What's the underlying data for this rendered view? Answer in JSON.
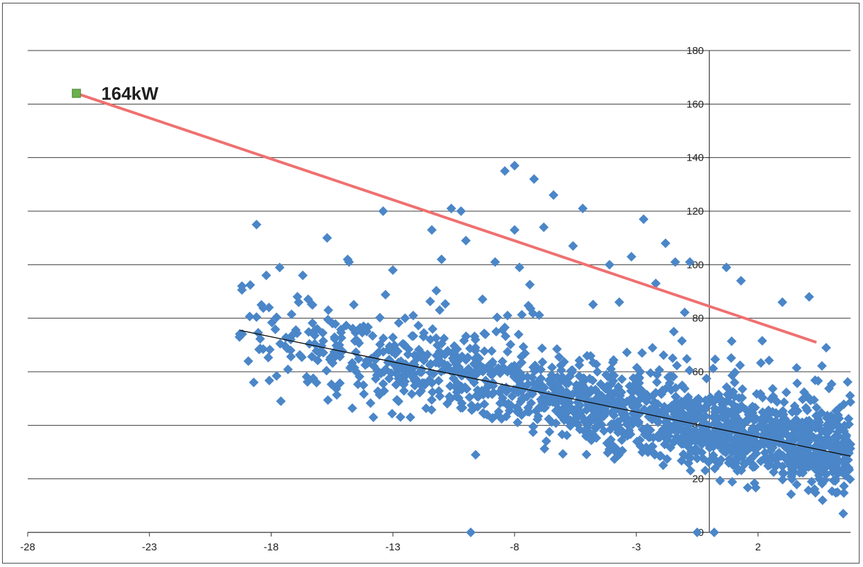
{
  "chart_data": {
    "type": "scatter",
    "title": "",
    "xlabel": "",
    "ylabel": "",
    "xlim": [
      -28,
      5.8
    ],
    "ylim": [
      0,
      180
    ],
    "x_ticks": [
      -28,
      -23,
      -18,
      -13,
      -8,
      -3,
      2
    ],
    "y_ticks": [
      0,
      20,
      40,
      60,
      80,
      100,
      120,
      140,
      160,
      180
    ],
    "grid": "horizontal",
    "legend": "none",
    "colors": {
      "points": "#4a86c8",
      "peak_line": "#f07070",
      "trend_line": "#111111",
      "peak_marker": "#6ab04c",
      "gridline": "#3a3a3a"
    },
    "scatter_summary": {
      "note": "Dense cloud of outdoor-temperature vs load readings; representative points",
      "sample_points": [
        [
          -19.3,
          73
        ],
        [
          -19.2,
          92
        ],
        [
          -18.6,
          115
        ],
        [
          -18.4,
          85
        ],
        [
          -18.2,
          96
        ],
        [
          -17.6,
          49
        ],
        [
          -17.2,
          68
        ],
        [
          -16.7,
          96
        ],
        [
          -16.3,
          85
        ],
        [
          -15.7,
          110
        ],
        [
          -15.2,
          70
        ],
        [
          -14.8,
          101
        ],
        [
          -14.5,
          60
        ],
        [
          -13.8,
          43
        ],
        [
          -13.4,
          120
        ],
        [
          -13.0,
          98
        ],
        [
          -12.5,
          80
        ],
        [
          -12.0,
          65
        ],
        [
          -11.4,
          113
        ],
        [
          -11.0,
          102
        ],
        [
          -10.6,
          121
        ],
        [
          -10.2,
          120
        ],
        [
          -10.0,
          109
        ],
        [
          -9.8,
          0
        ],
        [
          -9.6,
          29
        ],
        [
          -9.2,
          74
        ],
        [
          -8.8,
          101
        ],
        [
          -8.4,
          135
        ],
        [
          -8.0,
          137
        ],
        [
          -8.0,
          113
        ],
        [
          -7.8,
          99
        ],
        [
          -7.4,
          45
        ],
        [
          -7.2,
          132
        ],
        [
          -6.8,
          114
        ],
        [
          -6.4,
          126
        ],
        [
          -5.6,
          107
        ],
        [
          -5.2,
          121
        ],
        [
          -4.6,
          60
        ],
        [
          -4.1,
          100
        ],
        [
          -3.7,
          86
        ],
        [
          -3.2,
          103
        ],
        [
          -2.7,
          117
        ],
        [
          -2.2,
          93
        ],
        [
          -1.8,
          108
        ],
        [
          -1.4,
          101
        ],
        [
          -0.8,
          101
        ],
        [
          -0.5,
          0
        ],
        [
          0.2,
          0
        ],
        [
          0.7,
          99
        ],
        [
          1.3,
          94
        ],
        [
          2.2,
          40
        ],
        [
          3.0,
          86
        ],
        [
          4.1,
          88
        ],
        [
          4.8,
          69
        ],
        [
          5.5,
          7
        ]
      ]
    },
    "series": [
      {
        "kind": "peak_line",
        "x": [
          -26.0,
          4.4
        ],
        "y": [
          164.0,
          71.0
        ]
      },
      {
        "kind": "trend_line",
        "x": [
          -19.3,
          5.8
        ],
        "y": [
          75.5,
          28.5
        ]
      }
    ],
    "annotations": [
      {
        "text": "164kW",
        "x": -26.0,
        "y": 164.0
      }
    ]
  }
}
